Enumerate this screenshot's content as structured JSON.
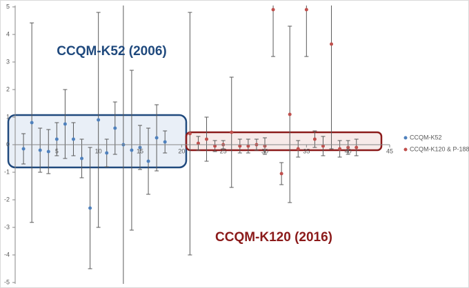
{
  "chart_data": {
    "type": "scatter",
    "xlim": [
      0,
      45
    ],
    "xticks": [
      5,
      10,
      15,
      20,
      25,
      30,
      35,
      40,
      45
    ],
    "ylim": [
      -5,
      5
    ],
    "yticks": [
      -5,
      -4,
      -3,
      -2,
      -1,
      0,
      1,
      2,
      3,
      4,
      5
    ],
    "annotations": [
      {
        "text": "CCQM-K52 (2006)",
        "color": "#1f497d"
      },
      {
        "text": "CCQM-K120 (2016)",
        "color": "#8b1a1a"
      }
    ],
    "legend": "right",
    "series": [
      {
        "name": "CCQM-K52",
        "color": "#4f81bd",
        "x": [
          1,
          2,
          3,
          4,
          5,
          6,
          7,
          8,
          9,
          10,
          11,
          12,
          13,
          14,
          15,
          16,
          17,
          18
        ],
        "values": [
          -0.15,
          0.8,
          -0.2,
          -0.25,
          0.2,
          0.75,
          0.2,
          -0.5,
          -2.3,
          0.9,
          -0.3,
          0.6,
          0,
          -0.2,
          -0.1,
          -0.6,
          0.25,
          0.1
        ],
        "errors": [
          0.55,
          3.62,
          0.8,
          0.8,
          0.6,
          1.25,
          0.6,
          0.7,
          2.2,
          3.9,
          0.5,
          0.95,
          5.2,
          2.9,
          0.8,
          1.2,
          1.2,
          0.4
        ]
      },
      {
        "name": "CCQM-K120 & P-188",
        "color": "#c0504d",
        "x": [
          21,
          22,
          23,
          24,
          25,
          26,
          27,
          28,
          29,
          30,
          31,
          32,
          33,
          34,
          35,
          36,
          37,
          38,
          39,
          40,
          41
        ],
        "values": [
          0.4,
          0.05,
          0.2,
          -0.05,
          0,
          0.45,
          -0.05,
          -0.05,
          0,
          -0.05,
          4.9,
          -1.05,
          1.1,
          -0.15,
          4.9,
          0.2,
          -0.05,
          3.65,
          -0.15,
          -0.1,
          -0.1
        ],
        "errors": [
          4.4,
          0.25,
          0.8,
          0.2,
          0.15,
          2.0,
          0.25,
          0.25,
          0.2,
          0.3,
          1.7,
          0.4,
          3.2,
          0.3,
          1.7,
          0.3,
          0.35,
          3.8,
          0.3,
          0.25,
          0.3
        ]
      }
    ]
  }
}
